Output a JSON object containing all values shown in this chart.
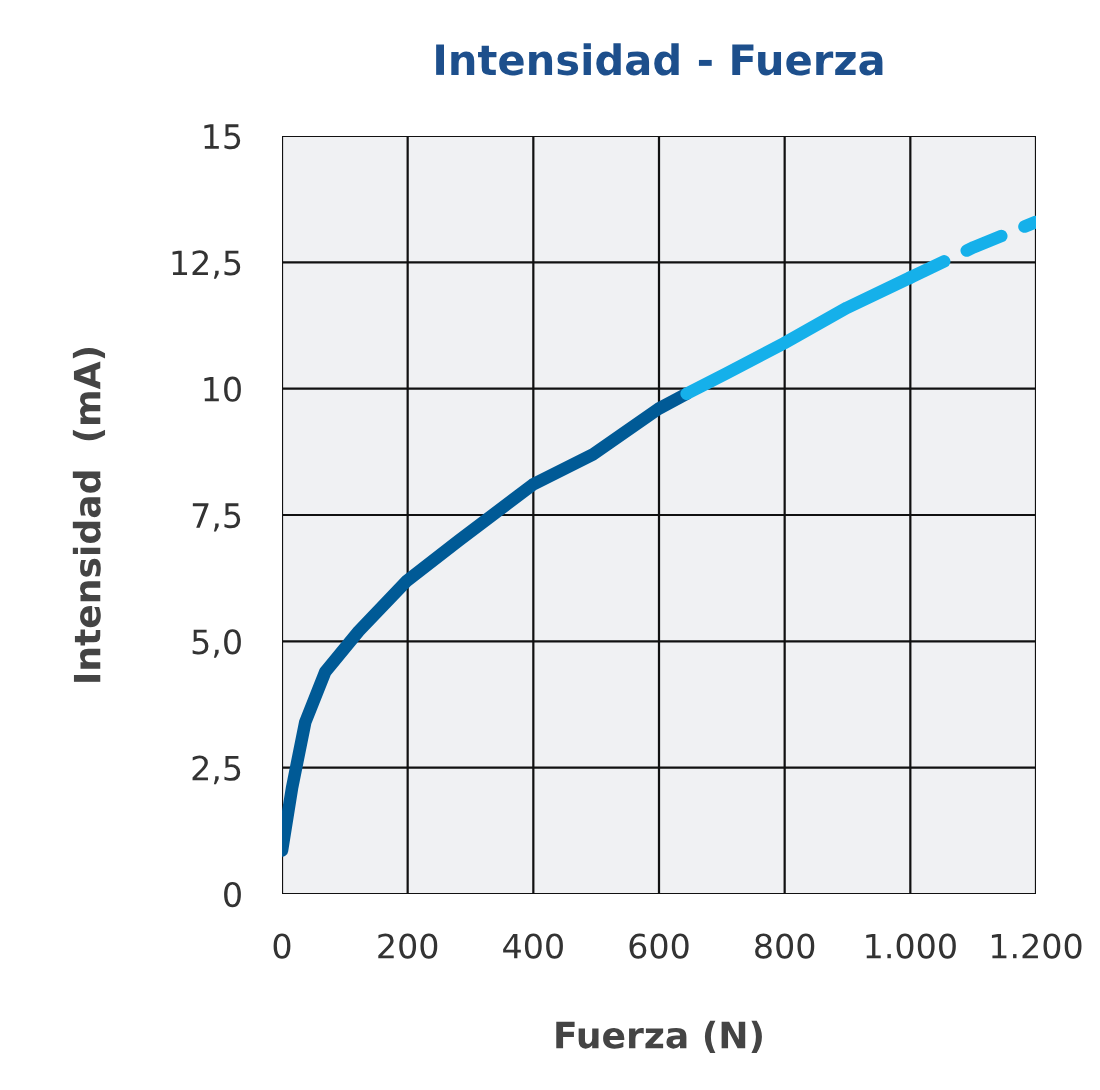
{
  "chart_data": {
    "type": "line",
    "title": "Intensidad - Fuerza",
    "xlabel": "Fuerza (N)",
    "ylabel": "Intensidad  (mA)",
    "xlim": [
      0,
      1200
    ],
    "xticks": [
      0,
      200,
      400,
      600,
      800,
      {
        "value": 1000,
        "label": "1.000"
      },
      {
        "value": 1200,
        "label": "1.200"
      }
    ],
    "ylim": [
      0,
      15
    ],
    "yticks": [
      0,
      {
        "value": 2.5,
        "label": "2,5"
      },
      {
        "value": 5,
        "label": "5,0"
      },
      {
        "value": 7.5,
        "label": "7,5"
      },
      10,
      {
        "value": 12.5,
        "label": "12,5"
      },
      15
    ],
    "grid": true,
    "marker": "none",
    "series": [
      {
        "color": "#005a96",
        "line_style": "solid",
        "x": [
          0,
          16,
          37,
          69,
          122,
          199,
          282,
          399,
          495,
          599,
          644
        ],
        "values": [
          0.86,
          2.1,
          3.4,
          4.4,
          5.2,
          6.2,
          7.0,
          8.1,
          8.7,
          9.6,
          9.9
        ]
      },
      {
        "color": "#15b0ea",
        "line_style": "solid",
        "x": [
          644,
          707,
          799,
          899,
          1000
        ],
        "values": [
          9.9,
          10.3,
          10.9,
          11.6,
          12.2
        ]
      },
      {
        "color": "#15b0ea",
        "line_style": "dashed",
        "x": [
          1000,
          1101,
          1200
        ],
        "values": [
          12.2,
          12.8,
          13.3
        ]
      }
    ]
  }
}
